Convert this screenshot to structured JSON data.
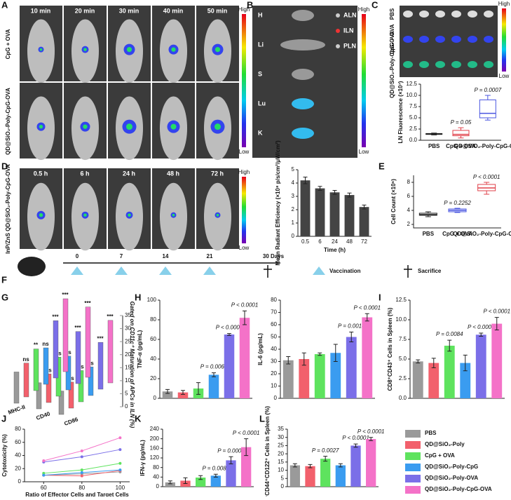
{
  "figure": {
    "panel_labels": [
      "A",
      "B",
      "C",
      "D",
      "E",
      "F",
      "G",
      "H",
      "I",
      "J",
      "K",
      "L"
    ],
    "A": {
      "times": [
        "10 min",
        "20 min",
        "30 min",
        "40 min",
        "50 min"
      ],
      "rows": [
        "CpG + OVA",
        "QD@SiO₂-Poly-CpG-OVA"
      ],
      "scale": [
        "High",
        "Low"
      ]
    },
    "B": {
      "organs_left": [
        "H",
        "Li",
        "S",
        "Lu",
        "K"
      ],
      "organs_right": [
        "ALN",
        "ILN",
        "PLN"
      ],
      "scale": [
        "High",
        "Low"
      ]
    },
    "C": {
      "rows": [
        "PBS",
        "CpG + OVA",
        "QD@SiO₂-Poly-CpG-OVA"
      ],
      "scale": [
        "High",
        "Low"
      ]
    },
    "D": {
      "times": [
        "0.5 h",
        "6 h",
        "24 h",
        "48 h",
        "72 h"
      ],
      "row": "InP/ZnS QD@SiO₂-Poly-CpG-OVA",
      "scale": [
        "High",
        "Low"
      ]
    },
    "F": {
      "days": [
        0,
        7,
        14,
        21
      ],
      "end": "30 Days",
      "vaccination": "Vaccination",
      "sacrifice": "Sacrifice"
    },
    "legend": [
      {
        "name": "PBS",
        "color": "#9a9a9a"
      },
      {
        "name": "QD@SiO₂-Poly",
        "color": "#f2606c"
      },
      {
        "name": "CpG + OVA",
        "color": "#5ee35e"
      },
      {
        "name": "QD@SiO₂-Poly-CpG",
        "color": "#3a9cf0"
      },
      {
        "name": "QD@SiO₂-Poly-OVA",
        "color": "#7b6fe8"
      },
      {
        "name": "QD@SiO₂-Poly-CpG-OVA",
        "color": "#f472c8"
      }
    ]
  },
  "chart_data": [
    {
      "type": "box",
      "ylabel": "LN Fluorescence (×10⁷)",
      "categories": [
        "PBS",
        "CpG + OVA",
        "QD@SiO₂-Poly-CpG-OVA"
      ],
      "colors": [
        "#222222",
        "#e0404a",
        "#4a56e0"
      ],
      "boxes": [
        {
          "min": 1.2,
          "q1": 1.3,
          "median": 1.4,
          "q3": 1.5,
          "max": 1.6
        },
        {
          "min": 0.5,
          "q1": 1,
          "median": 1.3,
          "q3": 2.2,
          "max": 2.8
        },
        {
          "min": 4.5,
          "q1": 5,
          "median": 6,
          "q3": 9,
          "max": 10
        }
      ],
      "p_values": [
        null,
        "P = 0.05",
        "P = 0.0007"
      ],
      "ylim": [
        0,
        12.5
      ],
      "yticks": [
        {
          "value": 0,
          "label": "0.0"
        },
        {
          "value": 2.5,
          "label": "2.5"
        },
        {
          "value": 5,
          "label": "5.0"
        },
        {
          "value": 7.5,
          "label": "7.5"
        },
        {
          "value": 10,
          "label": "10.0"
        },
        {
          "value": 12.5,
          "label": "12.5"
        }
      ]
    },
    {
      "type": "bar",
      "ylabel": "Mean Radiant Efficiency (×10⁸ p/s/cm²/μW/cm²)",
      "xlabel": "Time (h)",
      "categories": [
        "0.5",
        "6",
        "24",
        "48",
        "72"
      ],
      "color": "#444444",
      "values": [
        4.2,
        3.6,
        3.3,
        3.1,
        2.2
      ],
      "errors": [
        0.25,
        0.15,
        0.15,
        0.15,
        0.15
      ],
      "ylim": [
        0,
        5
      ],
      "yticks": [
        0,
        1,
        2,
        3,
        4,
        5
      ]
    },
    {
      "type": "box",
      "ylabel": "Cell Count (×10⁶)",
      "categories": [
        "PBS",
        "CpG + OVA",
        "QD@SiO₂-Poly-CpG-OVA"
      ],
      "colors": [
        "#222222",
        "#4a56e0",
        "#e0404a"
      ],
      "boxes": [
        {
          "min": 3.1,
          "q1": 3.3,
          "median": 3.4,
          "q3": 3.6,
          "max": 3.8
        },
        {
          "min": 3.7,
          "q1": 3.8,
          "median": 4,
          "q3": 4.2,
          "max": 4.3
        },
        {
          "min": 6.3,
          "q1": 6.8,
          "median": 7.2,
          "q3": 7.7,
          "max": 8
        }
      ],
      "p_values": [
        null,
        "P = 0.2252",
        "P < 0.0001"
      ],
      "ylim": [
        1.5,
        9
      ],
      "yticks": [
        2,
        4,
        6,
        8
      ]
    },
    {
      "type": "bar3d",
      "zlabel": "Gated on CD11c⁺ Maturation of APCs in ILN (%)",
      "categories": [
        "MHC-II",
        "CD40",
        "CD86"
      ],
      "zlim": [
        0,
        35
      ],
      "zticks": [
        0,
        5,
        10,
        15,
        20,
        25,
        30,
        35
      ],
      "series": [
        {
          "name": "PBS",
          "color": "#9a9a9a",
          "values": [
            12,
            10,
            9
          ]
        },
        {
          "name": "QD@SiO₂-Poly",
          "color": "#f2606c",
          "values": [
            13,
            11,
            10
          ],
          "value_labels": [
            "ns",
            "ns",
            "ns"
          ]
        },
        {
          "name": "CpG + OVA",
          "color": "#5ee35e",
          "values": [
            16,
            15,
            12
          ],
          "value_labels": [
            "**",
            "ns",
            "ns"
          ]
        },
        {
          "name": "QD@SiO₂-Poly-CpG",
          "color": "#3a9cf0",
          "values": [
            14,
            13,
            11
          ],
          "value_labels": [
            "ns",
            "ns",
            "ns"
          ]
        },
        {
          "name": "QD@SiO₂-Poly-OVA",
          "color": "#7b6fe8",
          "values": [
            22,
            20,
            18
          ],
          "value_labels": [
            "***",
            "***",
            "***"
          ]
        },
        {
          "name": "QD@SiO₂-Poly-CpG-OVA",
          "color": "#f472c8",
          "values": [
            28,
            27,
            24
          ],
          "value_labels": [
            "***",
            "***",
            "***"
          ]
        }
      ]
    },
    {
      "type": "bar",
      "ylabel": "TNF-α (pg/mL)",
      "colors": [
        "#9a9a9a",
        "#f2606c",
        "#5ee35e",
        "#3a9cf0",
        "#7b6fe8",
        "#f472c8"
      ],
      "values": [
        7,
        6,
        10,
        24,
        65,
        82
      ],
      "errors": [
        2,
        2,
        6,
        2,
        1,
        7
      ],
      "p_values": [
        null,
        null,
        null,
        "P = 0.0069",
        "P < 0.0001",
        "P < 0.0001"
      ],
      "ylim": [
        0,
        100
      ],
      "yticks": [
        0,
        20,
        40,
        60,
        80,
        100
      ]
    },
    {
      "type": "bar",
      "ylabel": "IL-6 (pg/mL)",
      "colors": [
        "#9a9a9a",
        "#f2606c",
        "#5ee35e",
        "#3a9cf0",
        "#7b6fe8",
        "#f472c8"
      ],
      "values": [
        31,
        32,
        36,
        37,
        50,
        66
      ],
      "errors": [
        3,
        5,
        1,
        7,
        4,
        3
      ],
      "p_values": [
        null,
        null,
        null,
        null,
        "P = 0.0014",
        "P < 0.0001"
      ],
      "ylim": [
        0,
        80
      ],
      "yticks": [
        0,
        10,
        20,
        30,
        40,
        50,
        60,
        70,
        80
      ]
    },
    {
      "type": "bar",
      "ylabel": "CD8⁺CD43⁺ Cells in Spleen (%)",
      "colors": [
        "#9a9a9a",
        "#f2606c",
        "#5ee35e",
        "#3a9cf0",
        "#7b6fe8",
        "#f472c8"
      ],
      "values": [
        4.7,
        4.5,
        6.7,
        4.5,
        8.1,
        9.5
      ],
      "errors": [
        0.2,
        0.6,
        0.7,
        1,
        0.2,
        0.8
      ],
      "p_values": [
        null,
        null,
        "P = 0.0084",
        null,
        "P < 0.0001",
        "P < 0.0001"
      ],
      "ylim": [
        0,
        12.5
      ],
      "yticks": [
        {
          "value": 0,
          "label": "0.0"
        },
        {
          "value": 2.5,
          "label": "2.5"
        },
        {
          "value": 5,
          "label": "5.0"
        },
        {
          "value": 7.5,
          "label": "7.5"
        },
        {
          "value": 10,
          "label": "10.0"
        },
        {
          "value": 12.5,
          "label": "12.5"
        }
      ]
    },
    {
      "type": "line",
      "ylabel": "Cytotoxicity (%)",
      "xlabel": "Ratio of Effector Cells and Target Cells",
      "x": [
        60,
        80,
        100
      ],
      "xlim": [
        50,
        105
      ],
      "xticks": [
        60,
        80,
        100
      ],
      "ylim": [
        0,
        80
      ],
      "yticks": [
        0,
        20,
        40,
        60,
        80
      ],
      "series": [
        {
          "name": "PBS",
          "color": "#9a9a9a",
          "values": [
            10,
            12,
            15
          ]
        },
        {
          "name": "QD@SiO₂-Poly",
          "color": "#f2606c",
          "values": [
            10,
            9,
            17
          ]
        },
        {
          "name": "CpG + OVA",
          "color": "#5ee35e",
          "values": [
            13,
            18,
            28
          ]
        },
        {
          "name": "QD@SiO₂-Poly-CpG",
          "color": "#3a9cf0",
          "values": [
            10,
            14,
            18
          ]
        },
        {
          "name": "QD@SiO₂-Poly-OVA",
          "color": "#7b6fe8",
          "values": [
            30,
            38,
            49
          ]
        },
        {
          "name": "QD@SiO₂-Poly-CpG-OVA",
          "color": "#f472c8",
          "values": [
            32,
            47,
            67
          ]
        }
      ]
    },
    {
      "type": "bar",
      "ylabel": "IFN-γ (pg/mL)",
      "colors": [
        "#9a9a9a",
        "#f2606c",
        "#5ee35e",
        "#3a9cf0",
        "#7b6fe8",
        "#f472c8"
      ],
      "values": [
        18,
        25,
        38,
        46,
        110,
        165
      ],
      "errors": [
        6,
        12,
        8,
        6,
        15,
        35
      ],
      "p_values": [
        null,
        null,
        null,
        "P = 0.0087",
        "P = 0.0001",
        "P < 0.0001"
      ],
      "ylim": [
        0,
        240
      ],
      "yticks": [
        0,
        40,
        80,
        120,
        160,
        200,
        240
      ]
    },
    {
      "type": "bar",
      "ylabel": "CD8⁺CD44⁺CD122⁺ Cells in Spleen (%)",
      "colors": [
        "#9a9a9a",
        "#f2606c",
        "#5ee35e",
        "#3a9cf0",
        "#7b6fe8",
        "#f472c8"
      ],
      "values": [
        13,
        12.5,
        17,
        13,
        25,
        29
      ],
      "errors": [
        1,
        1,
        1.5,
        1,
        1,
        1
      ],
      "p_values": [
        null,
        null,
        "P = 0.0027",
        null,
        "P < 0.0001",
        "P < 0.0001"
      ],
      "ylim": [
        0,
        35
      ],
      "yticks": [
        0,
        5,
        10,
        15,
        20,
        25,
        30,
        35
      ]
    }
  ]
}
